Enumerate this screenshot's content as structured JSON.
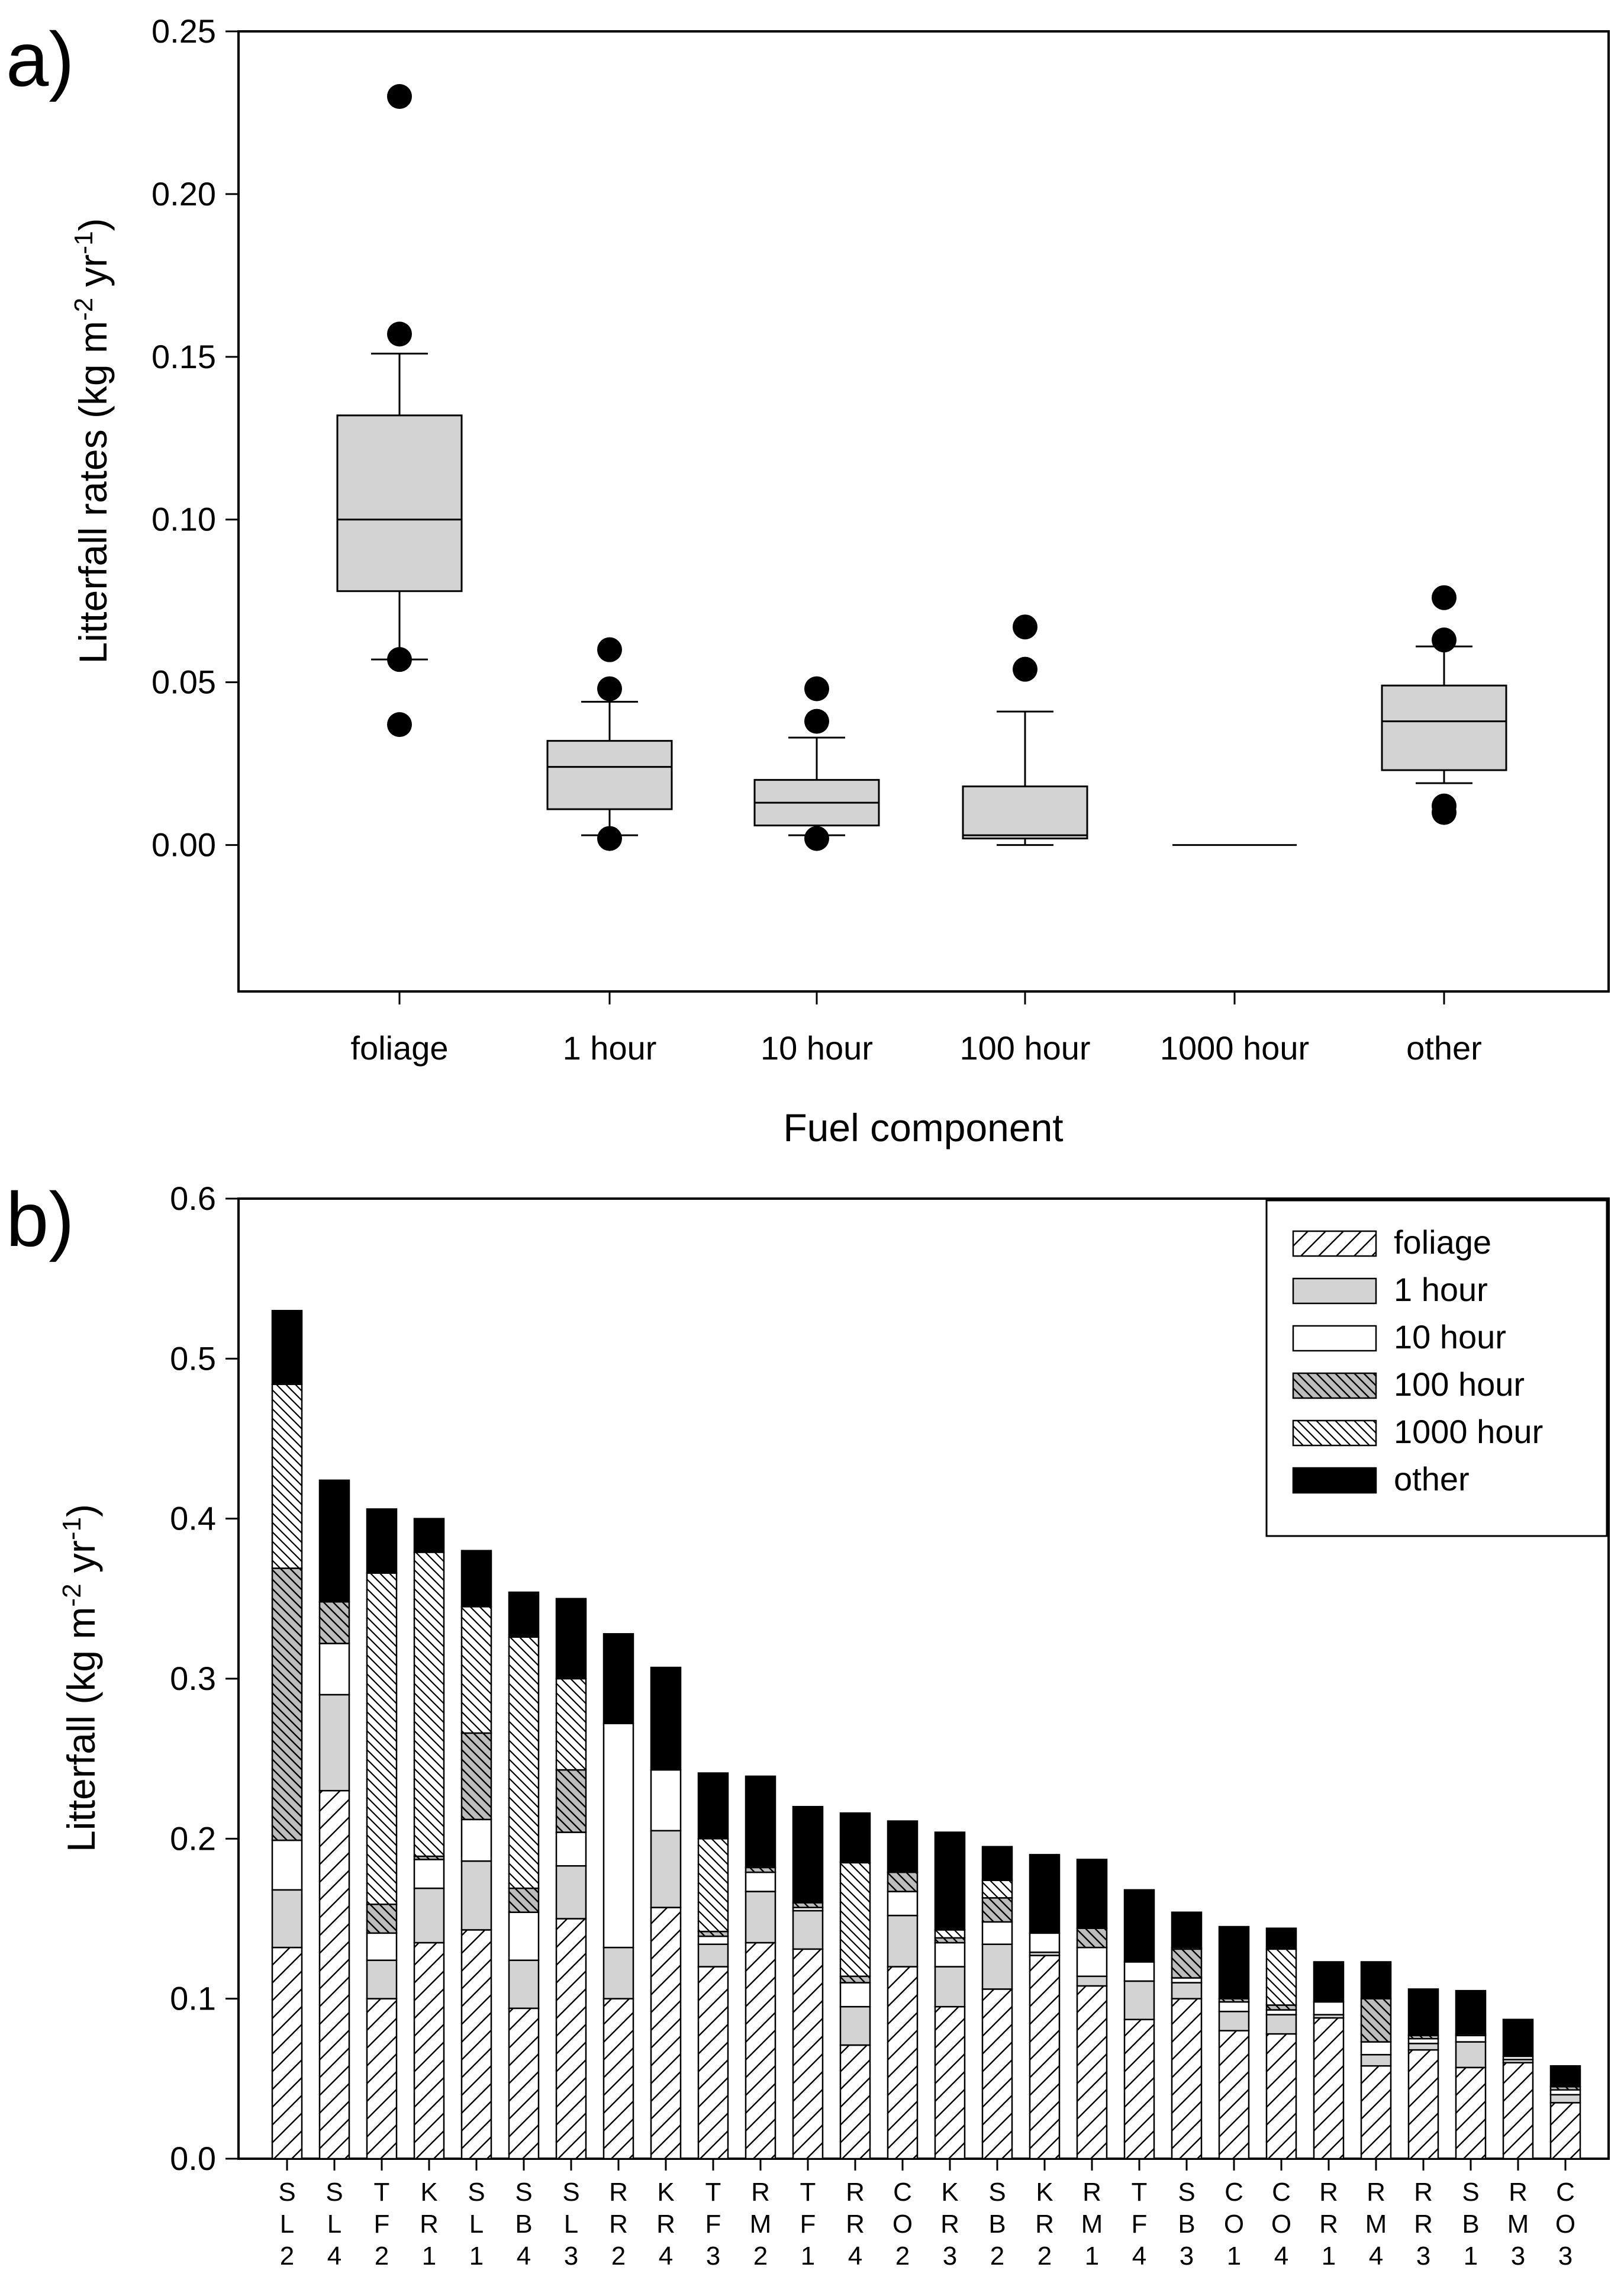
{
  "chart_data": [
    {
      "type": "box",
      "panel_label": "a)",
      "xlabel": "Fuel component",
      "ylabel": "Litterfall rates (kg m",
      "ylabel_sup1": "-2",
      "ylabel_mid": " yr",
      "ylabel_sup2": "-1",
      "ylabel_end": ")",
      "ylim": [
        -0.045,
        0.25
      ],
      "yticks": [
        "0.00",
        "0.05",
        "0.10",
        "0.15",
        "0.20",
        "0.25"
      ],
      "categories": [
        "foliage",
        "1 hour",
        "10 hour",
        "100 hour",
        "1000 hour",
        "other"
      ],
      "boxes": [
        {
          "q1": 0.078,
          "median": 0.1,
          "q3": 0.132,
          "whisker_low": 0.057,
          "whisker_high": 0.151,
          "outliers": [
            0.23,
            0.157,
            0.057,
            0.037
          ]
        },
        {
          "q1": 0.011,
          "median": 0.024,
          "q3": 0.032,
          "whisker_low": 0.003,
          "whisker_high": 0.044,
          "outliers": [
            0.06,
            0.048,
            0.002
          ]
        },
        {
          "q1": 0.006,
          "median": 0.013,
          "q3": 0.02,
          "whisker_low": 0.003,
          "whisker_high": 0.033,
          "outliers": [
            0.048,
            0.038,
            0.002
          ]
        },
        {
          "q1": 0.002,
          "median": 0.003,
          "q3": 0.018,
          "whisker_low": 0.0,
          "whisker_high": 0.041,
          "outliers": [
            0.067,
            0.054
          ]
        },
        {
          "q1": 0.0,
          "median": 0.0,
          "q3": 0.0,
          "whisker_low": 0.0,
          "whisker_high": 0.0,
          "outliers": []
        },
        {
          "q1": 0.023,
          "median": 0.038,
          "q3": 0.049,
          "whisker_low": 0.019,
          "whisker_high": 0.061,
          "outliers": [
            0.076,
            0.063,
            0.012,
            0.01
          ]
        }
      ]
    },
    {
      "type": "bar",
      "stacked": true,
      "panel_label": "b)",
      "ylabel": "Litterfall (kg m",
      "ylabel_sup1": "-2",
      "ylabel_mid": " yr",
      "ylabel_sup2": "-1",
      "ylabel_end": ")",
      "ylim": [
        0,
        0.6
      ],
      "yticks": [
        "0.0",
        "0.1",
        "0.2",
        "0.3",
        "0.4",
        "0.5",
        "0.6"
      ],
      "legend_position": "top-right",
      "categories": [
        [
          "S",
          "L",
          "2"
        ],
        [
          "S",
          "L",
          "4"
        ],
        [
          "T",
          "F",
          "2"
        ],
        [
          "K",
          "R",
          "1"
        ],
        [
          "S",
          "L",
          "1"
        ],
        [
          "S",
          "B",
          "4"
        ],
        [
          "S",
          "L",
          "3"
        ],
        [
          "R",
          "R",
          "2"
        ],
        [
          "K",
          "R",
          "4"
        ],
        [
          "T",
          "F",
          "3"
        ],
        [
          "R",
          "M",
          "2"
        ],
        [
          "T",
          "F",
          "1"
        ],
        [
          "R",
          "R",
          "4"
        ],
        [
          "C",
          "O",
          "2"
        ],
        [
          "K",
          "R",
          "3"
        ],
        [
          "S",
          "B",
          "2"
        ],
        [
          "K",
          "R",
          "2"
        ],
        [
          "R",
          "M",
          "1"
        ],
        [
          "T",
          "F",
          "4"
        ],
        [
          "S",
          "B",
          "3"
        ],
        [
          "C",
          "O",
          "1"
        ],
        [
          "C",
          "O",
          "4"
        ],
        [
          "R",
          "R",
          "1"
        ],
        [
          "R",
          "M",
          "4"
        ],
        [
          "R",
          "R",
          "3"
        ],
        [
          "S",
          "B",
          "1"
        ],
        [
          "R",
          "M",
          "3"
        ],
        [
          "C",
          "O",
          "3"
        ]
      ],
      "series": [
        {
          "name": "foliage",
          "values": [
            0.132,
            0.23,
            0.1,
            0.135,
            0.143,
            0.094,
            0.15,
            0.1,
            0.157,
            0.12,
            0.135,
            0.131,
            0.071,
            0.12,
            0.095,
            0.106,
            0.127,
            0.108,
            0.087,
            0.1,
            0.08,
            0.078,
            0.088,
            0.058,
            0.068,
            0.057,
            0.06,
            0.035
          ]
        },
        {
          "name": "1 hour",
          "values": [
            0.036,
            0.06,
            0.024,
            0.034,
            0.043,
            0.03,
            0.033,
            0.032,
            0.048,
            0.014,
            0.032,
            0.024,
            0.024,
            0.032,
            0.025,
            0.028,
            0.002,
            0.006,
            0.024,
            0.01,
            0.012,
            0.012,
            0.002,
            0.007,
            0.004,
            0.016,
            0.002,
            0.005
          ]
        },
        {
          "name": "10 hour",
          "values": [
            0.031,
            0.032,
            0.017,
            0.018,
            0.026,
            0.03,
            0.021,
            0.14,
            0.038,
            0.005,
            0.012,
            0.002,
            0.015,
            0.015,
            0.015,
            0.014,
            0.012,
            0.018,
            0.012,
            0.003,
            0.006,
            0.003,
            0.008,
            0.008,
            0.003,
            0.004,
            0.002,
            0.003
          ]
        },
        {
          "name": "100 hour",
          "values": [
            0.17,
            0.026,
            0.018,
            0.002,
            0.054,
            0.015,
            0.039,
            0,
            0,
            0.003,
            0.003,
            0.003,
            0.004,
            0.012,
            0.003,
            0.015,
            0,
            0.012,
            0,
            0.018,
            0.002,
            0.003,
            0,
            0.027,
            0.002,
            0.001,
            0,
            0.002
          ]
        },
        {
          "name": "1000 hour",
          "values": [
            0.115,
            0,
            0.207,
            0.19,
            0.079,
            0.157,
            0.057,
            0,
            0,
            0.058,
            0,
            0,
            0.071,
            0,
            0.005,
            0.011,
            0,
            0,
            0,
            0.001,
            0,
            0.035,
            0,
            0,
            0,
            0,
            0,
            0
          ]
        },
        {
          "name": "other",
          "values": [
            0.046,
            0.076,
            0.04,
            0.021,
            0.035,
            0.028,
            0.05,
            0.056,
            0.064,
            0.041,
            0.057,
            0.06,
            0.031,
            0.032,
            0.061,
            0.021,
            0.049,
            0.043,
            0.045,
            0.022,
            0.045,
            0.013,
            0.025,
            0.023,
            0.029,
            0.027,
            0.023,
            0.013
          ]
        }
      ]
    }
  ]
}
